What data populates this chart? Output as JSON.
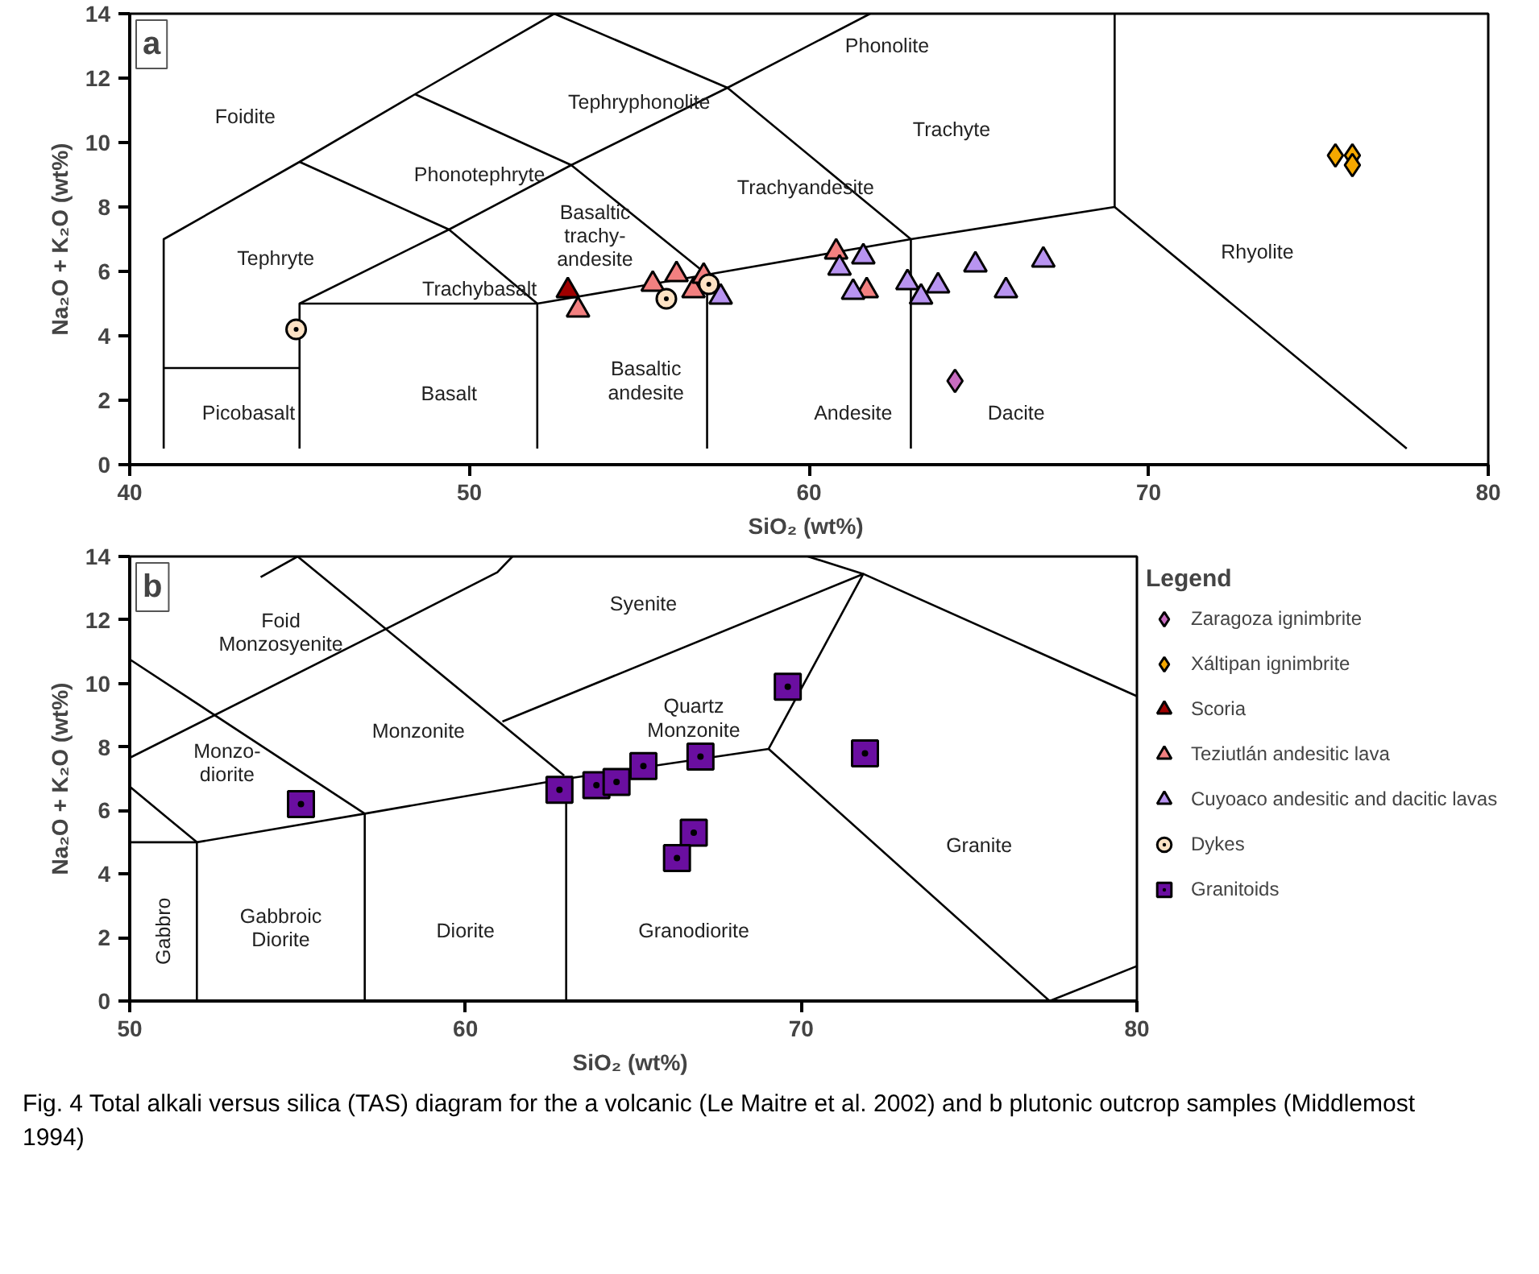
{
  "chart_data": [
    {
      "type": "scatter",
      "title": "a",
      "xlabel": "SiO₂  (wt%)",
      "ylabel": "Na₂O + K₂O (wt%)",
      "xlim": [
        40,
        80
      ],
      "ylim": [
        0,
        14
      ],
      "xticks": [
        40,
        50,
        60,
        70,
        80
      ],
      "yticks": [
        0,
        2,
        4,
        6,
        8,
        10,
        12,
        14
      ],
      "grid": false,
      "legend": "bottom right",
      "series": [
        {
          "type": "line",
          "color": "#000000",
          "x": [
            41,
            41,
            45,
            48.4,
            52.5
          ],
          "values": [
            0.5,
            7,
            9.4,
            11.5,
            14
          ]
        },
        {
          "type": "line",
          "color": "#000000",
          "x": [
            41,
            45
          ],
          "values": [
            3,
            3
          ]
        },
        {
          "type": "line",
          "color": "#000000",
          "x": [
            45,
            45,
            52,
            52
          ],
          "values": [
            0.5,
            5,
            5,
            0.5
          ]
        },
        {
          "type": "line",
          "color": "#000000",
          "x": [
            45,
            49.4,
            53,
            57.6,
            61.8
          ],
          "values": [
            5,
            7.3,
            9.3,
            11.7,
            14
          ]
        },
        {
          "type": "line",
          "color": "#000000",
          "x": [
            45,
            49.4,
            52
          ],
          "values": [
            9.4,
            7.3,
            5
          ]
        },
        {
          "type": "line",
          "color": "#000000",
          "x": [
            48.4,
            53,
            57
          ],
          "values": [
            11.5,
            9.3,
            5.9
          ]
        },
        {
          "type": "line",
          "color": "#000000",
          "x": [
            52,
            57,
            63,
            69,
            77.6
          ],
          "values": [
            5,
            5.9,
            7,
            8,
            0.5
          ]
        },
        {
          "type": "line",
          "color": "#000000",
          "x": [
            57,
            57
          ],
          "values": [
            0.5,
            5.9
          ]
        },
        {
          "type": "line",
          "color": "#000000",
          "x": [
            63,
            63
          ],
          "values": [
            0.5,
            7
          ]
        },
        {
          "type": "line",
          "color": "#000000",
          "x": [
            69,
            69
          ],
          "values": [
            8,
            14
          ]
        },
        {
          "type": "line",
          "color": "#000000",
          "x": [
            52.5,
            57.6,
            63
          ],
          "values": [
            14,
            11.7,
            7
          ]
        },
        {
          "name": "Zaragoza ignimbrite",
          "color": "#c86cc0",
          "marker": "diamond",
          "x": [
            64.3
          ],
          "values": [
            2.6
          ]
        },
        {
          "name": "Xáltipan ignimbrite",
          "color": "#f5a800",
          "marker": "diamond",
          "x": [
            75.5,
            76.0,
            76.0
          ],
          "values": [
            9.6,
            9.6,
            9.3
          ]
        },
        {
          "name": "Scoria",
          "color": "#a00000",
          "marker": "triangle",
          "x": [
            52.9
          ],
          "values": [
            5.4
          ]
        },
        {
          "name": "Teziutlán andesitic lava",
          "color": "#f28080",
          "marker": "triangle",
          "x": [
            53.2,
            55.4,
            56.1,
            56.6,
            56.9,
            60.8,
            61.7
          ],
          "values": [
            4.8,
            5.6,
            5.9,
            5.4,
            5.85,
            6.6,
            5.4
          ]
        },
        {
          "name": "Cuyoaco andesitic and dacitic lavas",
          "color": "#b894f0",
          "marker": "triangle",
          "x": [
            57.4,
            61.6,
            60.9,
            61.3,
            62.9,
            63.3,
            63.8,
            64.9,
            65.8,
            66.9
          ],
          "values": [
            5.2,
            6.45,
            6.1,
            5.35,
            5.65,
            5.2,
            5.55,
            6.2,
            5.4,
            6.35
          ]
        },
        {
          "name": "Dykes",
          "color": "#fde2c4",
          "marker": "circle",
          "x": [
            44.9,
            55.8,
            57.05
          ],
          "values": [
            4.2,
            5.15,
            5.6
          ]
        }
      ],
      "annotations": [
        "Foidite",
        "Tephryte",
        "Picobasalt",
        "Phonotephryte",
        "Tephryphonolite",
        "Phonolite",
        "Trachybasalt",
        "Basalt",
        "Basaltic\ntrachy-\nandesite",
        "Trachyandesite",
        "Basaltic\nandesite",
        "Andesite",
        "Trachyte",
        "Dacite",
        "Rhyolite"
      ]
    },
    {
      "type": "scatter",
      "title": "b",
      "xlabel": "SiO₂  (wt%)",
      "ylabel": "Na₂O + K₂O (wt%)",
      "xlim": [
        50,
        80
      ],
      "ylim": [
        0,
        14
      ],
      "xticks": [
        50,
        60,
        70,
        80
      ],
      "yticks": [
        0,
        2,
        4,
        6,
        8,
        10,
        12,
        14
      ],
      "grid": false,
      "legend": "right",
      "legend_title": "Legend",
      "series": [
        {
          "type": "line",
          "color": "#000000",
          "x": [
            50,
            52,
            52
          ],
          "values": [
            5,
            5,
            0
          ]
        },
        {
          "type": "line",
          "color": "#000000",
          "x": [
            50,
            52,
            57,
            63,
            69.03,
            77.4,
            80
          ],
          "values": [
            6.75,
            5,
            5.9,
            7,
            7.94,
            0,
            1.1
          ]
        },
        {
          "type": "line",
          "color": "#000000",
          "x": [
            57,
            57
          ],
          "values": [
            0,
            5.9
          ]
        },
        {
          "type": "line",
          "color": "#000000",
          "x": [
            63,
            63
          ],
          "values": [
            0,
            7
          ]
        },
        {
          "type": "line",
          "color": "#000000",
          "x": [
            50,
            57
          ],
          "values": [
            10.76,
            5.9
          ]
        },
        {
          "type": "line",
          "color": "#000000",
          "x": [
            50,
            57.6,
            60.95,
            61.4
          ],
          "values": [
            7.66,
            11.7,
            13.5,
            14
          ]
        },
        {
          "type": "line",
          "color": "#000000",
          "x": [
            53.9,
            55,
            62.94
          ],
          "values": [
            13.35,
            14,
            7.1
          ]
        },
        {
          "type": "line",
          "color": "#000000",
          "x": [
            61.1,
            71.85,
            80
          ],
          "values": [
            8.8,
            13.45,
            9.6
          ]
        },
        {
          "type": "line",
          "color": "#000000",
          "x": [
            70.2,
            71.85,
            69.03
          ],
          "values": [
            14,
            13.45,
            7.94
          ]
        },
        {
          "name": "Granitoids",
          "color": "#6a0ea0",
          "marker": "square",
          "x": [
            55.1,
            62.8,
            63.9,
            64.5,
            65.3,
            67.0,
            69.6,
            71.9,
            66.8,
            66.3
          ],
          "values": [
            6.2,
            6.65,
            6.8,
            6.9,
            7.4,
            7.7,
            9.9,
            7.8,
            5.3,
            4.5
          ]
        }
      ],
      "annotations": [
        "Foid\nMonzosyenite",
        "Syenite",
        "Monzo-\ndiorite",
        "Monzonite",
        "Quartz\nMonzonite",
        "Gabbro",
        "Gabbroic\nDiorite",
        "Diorite",
        "Granodiorite",
        "Granite",
        "Fig. 4  Total alkali versus silica (TAS) diagram for the a volcanic (Le Maitre et al. 2002) and b plutonic outcrop samples (Middlemost 1994)"
      ]
    }
  ]
}
